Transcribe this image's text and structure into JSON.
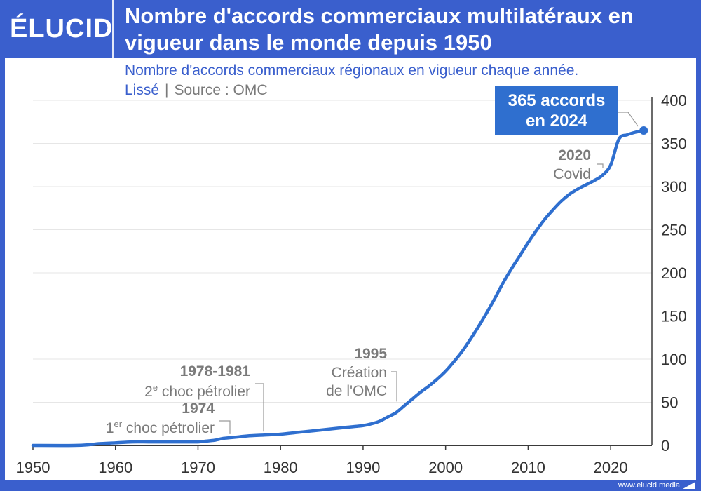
{
  "header": {
    "logo": "ÉLUCID",
    "title": "Nombre d'accords commerciaux multilatéraux en vigueur dans le monde depuis 1950",
    "subtitle": "Nombre d'accords commerciaux régionaux en vigueur chaque année.",
    "subtitle_smoothed": "Lissé",
    "subtitle_separator": "|",
    "subtitle_source": "Source : OMC"
  },
  "footer": {
    "site": "www.elucid.media"
  },
  "colors": {
    "brand": "#3a5fcd",
    "line": "#2f6fcf",
    "callout_bg": "#2f6fcf",
    "annotation": "#7a7a7a",
    "grid": "#e6e6e6"
  },
  "chart_data": {
    "type": "line",
    "title": "",
    "xlabel": "",
    "ylabel": "",
    "xlim": [
      1950,
      2025
    ],
    "ylim": [
      0,
      400
    ],
    "x_ticks": [
      1950,
      1960,
      1970,
      1980,
      1990,
      2000,
      2010,
      2020
    ],
    "y_ticks": [
      0,
      50,
      100,
      150,
      200,
      250,
      300,
      350,
      400
    ],
    "y_axis_position": "right",
    "grid": true,
    "series": [
      {
        "points": [
          [
            1950,
            0
          ],
          [
            1955,
            0
          ],
          [
            1957,
            1
          ],
          [
            1958,
            2
          ],
          [
            1960,
            3
          ],
          [
            1962,
            4
          ],
          [
            1964,
            4
          ],
          [
            1966,
            4
          ],
          [
            1968,
            4
          ],
          [
            1970,
            4
          ],
          [
            1971,
            5
          ],
          [
            1972,
            6
          ],
          [
            1973,
            8
          ],
          [
            1974,
            9
          ],
          [
            1975,
            10
          ],
          [
            1976,
            11
          ],
          [
            1978,
            12
          ],
          [
            1980,
            13
          ],
          [
            1982,
            15
          ],
          [
            1984,
            17
          ],
          [
            1986,
            19
          ],
          [
            1988,
            21
          ],
          [
            1990,
            23
          ],
          [
            1991,
            25
          ],
          [
            1992,
            28
          ],
          [
            1993,
            33
          ],
          [
            1994,
            38
          ],
          [
            1995,
            46
          ],
          [
            1996,
            54
          ],
          [
            1997,
            62
          ],
          [
            1998,
            69
          ],
          [
            1999,
            77
          ],
          [
            2000,
            86
          ],
          [
            2001,
            97
          ],
          [
            2002,
            109
          ],
          [
            2003,
            123
          ],
          [
            2004,
            138
          ],
          [
            2005,
            154
          ],
          [
            2006,
            171
          ],
          [
            2007,
            189
          ],
          [
            2008,
            205
          ],
          [
            2009,
            220
          ],
          [
            2010,
            235
          ],
          [
            2011,
            249
          ],
          [
            2012,
            262
          ],
          [
            2013,
            273
          ],
          [
            2014,
            283
          ],
          [
            2015,
            291
          ],
          [
            2016,
            297
          ],
          [
            2017,
            302
          ],
          [
            2018,
            307
          ],
          [
            2019,
            313
          ],
          [
            2020,
            325
          ],
          [
            2021,
            355
          ],
          [
            2022,
            360
          ],
          [
            2023,
            363
          ],
          [
            2024,
            365
          ]
        ]
      }
    ],
    "callout": {
      "line1": "365 accords",
      "line2": "en 2024",
      "x": 2024,
      "y": 365
    },
    "annotations": [
      {
        "year_label": "2020",
        "text": "Covid",
        "x": 2020
      },
      {
        "year_label": "1995",
        "text_line1": "Création",
        "text_line2": "de l'OMC",
        "x": 1995
      },
      {
        "year_label": "1978-1981",
        "text_pre": "2",
        "text_sup": "e",
        "text_post": " choc pétrolier",
        "x": 1978
      },
      {
        "year_label": "1974",
        "text_pre": "1",
        "text_sup": "er",
        "text_post": " choc pétrolier",
        "x": 1974
      }
    ]
  }
}
